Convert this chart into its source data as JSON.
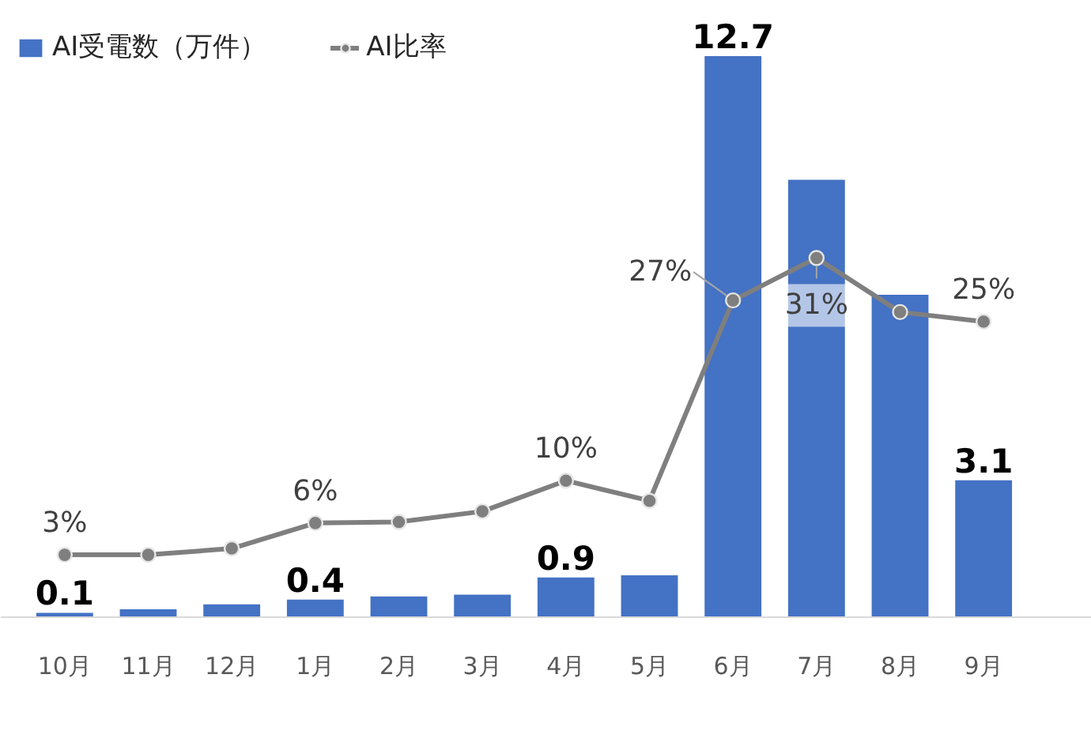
{
  "chart_data": {
    "type": "bar",
    "categories": [
      "10月",
      "11月",
      "12月",
      "1月",
      "2月",
      "3月",
      "4月",
      "5月",
      "6月",
      "7月",
      "8月",
      "9月"
    ],
    "series": [
      {
        "name": "AI受電数（万件）",
        "color": "#4472c4",
        "values": [
          0.1,
          0.18,
          0.29,
          0.4,
          0.47,
          0.51,
          0.9,
          0.95,
          12.7,
          9.9,
          7.3,
          3.1
        ],
        "value_labels": [
          "0.1",
          null,
          null,
          "0.4",
          null,
          null,
          "0.9",
          null,
          "12.7",
          null,
          null,
          "3.1"
        ]
      },
      {
        "name": "AI比率",
        "type": "line",
        "axis": "y2",
        "color": "#7f7f7f",
        "marker": "circle",
        "values": [
          3,
          3,
          3.6,
          6,
          6.1,
          7.1,
          10,
          8.1,
          27,
          31,
          25.9,
          25
        ],
        "value_labels": [
          "3%",
          null,
          null,
          "6%",
          null,
          null,
          "10%",
          null,
          "27%",
          "31%",
          null,
          "25%"
        ]
      }
    ],
    "tick_labels": "x",
    "legend": "top left",
    "grid": false
  }
}
